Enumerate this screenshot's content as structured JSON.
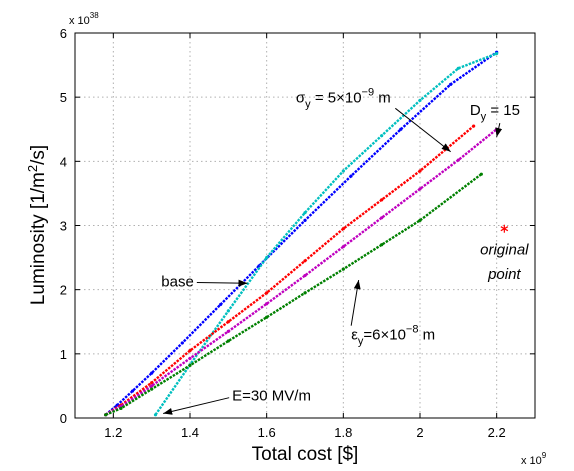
{
  "chart_data": {
    "type": "scatter",
    "xlabel": "Total cost [$]",
    "ylabel": "Luminosity [1/m²/s]",
    "ylabel_parts": {
      "pre": "Luminosity [1/m",
      "sup": "2",
      "post": "/s]"
    },
    "x_scale": {
      "prefix": "x 10",
      "exponent": "9"
    },
    "y_scale": {
      "prefix": "x 10",
      "exponent": "38"
    },
    "xlim": [
      1.1,
      2.3
    ],
    "ylim": [
      0,
      6
    ],
    "xticks": [
      1.2,
      1.4,
      1.6,
      1.8,
      2.0,
      2.2
    ],
    "xtick_labels": [
      "1.2",
      "1.4",
      "1.6",
      "1.8",
      "2",
      "2.2"
    ],
    "yticks": [
      0,
      1,
      2,
      3,
      4,
      5,
      6
    ],
    "ytick_labels": [
      "0",
      "1",
      "2",
      "3",
      "4",
      "5",
      "6"
    ],
    "grid": true,
    "series": [
      {
        "label": "base",
        "color": "#0000ff",
        "x": [
          1.18,
          1.21,
          1.25,
          1.3,
          1.38,
          1.48,
          1.58,
          1.7,
          1.82,
          1.95,
          2.08,
          2.2
        ],
        "y": [
          0.05,
          0.2,
          0.42,
          0.7,
          1.17,
          1.77,
          2.37,
          3.08,
          3.77,
          4.5,
          5.2,
          5.7
        ]
      },
      {
        "label": "E=30 MV/m",
        "color": "#00bfbf",
        "x": [
          1.31,
          1.4,
          1.5,
          1.6,
          1.7,
          1.8,
          1.9,
          2.0,
          2.1,
          2.2
        ],
        "y": [
          0.05,
          0.83,
          1.67,
          2.5,
          3.2,
          3.85,
          4.4,
          4.95,
          5.45,
          5.68
        ]
      },
      {
        "label": "σy = 5×10⁻⁹ m",
        "color": "#ff0000",
        "x": [
          1.18,
          1.22,
          1.3,
          1.4,
          1.5,
          1.6,
          1.7,
          1.8,
          1.9,
          2.0,
          2.14
        ],
        "y": [
          0.05,
          0.2,
          0.55,
          1.05,
          1.5,
          1.95,
          2.45,
          2.95,
          3.4,
          3.85,
          4.55
        ]
      },
      {
        "label": "Dy = 15",
        "color": "#bf00bf",
        "x": [
          1.18,
          1.22,
          1.3,
          1.4,
          1.5,
          1.6,
          1.7,
          1.8,
          1.9,
          2.0,
          2.1,
          2.2
        ],
        "y": [
          0.05,
          0.18,
          0.5,
          0.93,
          1.35,
          1.78,
          2.22,
          2.67,
          3.12,
          3.57,
          4.02,
          4.5
        ]
      },
      {
        "label": "εy=6×10⁻⁸ m",
        "color": "#008000",
        "x": [
          1.18,
          1.22,
          1.3,
          1.4,
          1.5,
          1.6,
          1.7,
          1.8,
          1.9,
          2.0,
          2.16
        ],
        "y": [
          0.05,
          0.15,
          0.45,
          0.82,
          1.2,
          1.57,
          1.95,
          2.32,
          2.7,
          3.08,
          3.8
        ]
      }
    ],
    "markers": [
      {
        "label": "original point",
        "x": 2.22,
        "y": 2.95,
        "color": "#ff0000"
      }
    ],
    "annotations": [
      {
        "id": "base",
        "text": "base",
        "x": 1.41,
        "y": 2.05,
        "arrow_to": [
          1.55,
          2.1
        ]
      },
      {
        "id": "e30",
        "text": "E=30 MV/m",
        "x": 1.51,
        "y": 0.27,
        "arrow_to": [
          1.33,
          0.07
        ]
      },
      {
        "id": "sigma",
        "pre": "σ",
        "sub": "y",
        "mid": " = 5×10",
        "sup": "−9",
        "post": " m",
        "x": 1.8,
        "y": 4.92,
        "arrow_to": [
          2.08,
          4.15
        ]
      },
      {
        "id": "dy",
        "pre": "D",
        "sub": "y",
        "post": " = 15",
        "x": 2.13,
        "y": 4.72,
        "arrow_to": [
          2.2,
          4.38
        ]
      },
      {
        "id": "epsilon",
        "pre": "ε",
        "sub": "y",
        "post": "=6×10",
        "sup": "−8",
        "post2": " m",
        "x": 1.93,
        "y": 1.22,
        "arrow_to": [
          1.84,
          2.15
        ]
      },
      {
        "id": "orig1",
        "text": "original",
        "x": 2.22,
        "y": 2.55
      },
      {
        "id": "orig2",
        "text": "point",
        "x": 2.22,
        "y": 2.17
      }
    ]
  }
}
